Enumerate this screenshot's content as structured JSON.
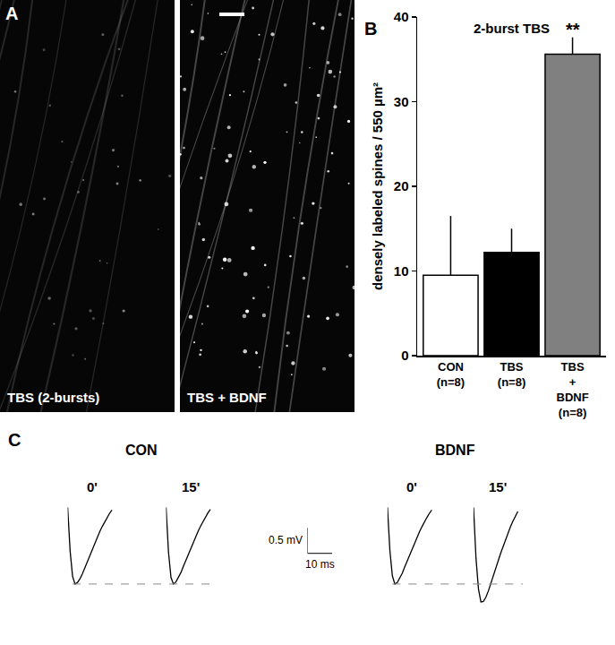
{
  "panel_labels": [
    "A",
    "B",
    "C"
  ],
  "images": {
    "captions": [
      "TBS (2-bursts)",
      "TBS + BDNF"
    ]
  },
  "chart_data": [
    {
      "type": "bar",
      "title": "2-burst TBS",
      "y_label": "densely labeled spines / 550 µm²",
      "categories": [
        "CON\n(n=8)",
        "TBS\n(n=8)",
        "TBS\n+\nBDNF\n(n=8)"
      ],
      "values": [
        9.5,
        12.2,
        35.6
      ],
      "errors": [
        7.0,
        2.8,
        2.0
      ],
      "colors": [
        "#ffffff",
        "#000000",
        "#808080"
      ],
      "ylim": [
        0,
        40
      ],
      "yticks": [
        0,
        10,
        20,
        30,
        40
      ],
      "grid": false,
      "annotations": [
        {
          "category": "TBS\n+\nBDNF\n(n=8)",
          "text": "**"
        }
      ]
    },
    {
      "type": "line",
      "x": [
        0,
        1,
        2,
        3,
        4,
        5,
        6,
        7,
        8,
        9,
        10,
        11,
        12,
        13,
        14,
        15,
        16,
        17,
        18
      ],
      "xlim": [
        0,
        20
      ],
      "ylim": [
        -2.1,
        0.15
      ],
      "tick_labels": false,
      "color": "#000000",
      "groups": [
        {
          "title": "CON",
          "reference_level": -1.5,
          "series": [
            {
              "name": "0'",
              "values": [
                0,
                -0.85,
                -1.35,
                -1.5,
                -1.47,
                -1.4,
                -1.3,
                -1.18,
                -1.06,
                -0.94,
                -0.82,
                -0.7,
                -0.59,
                -0.48,
                -0.38,
                -0.29,
                -0.2,
                -0.12,
                -0.05
              ]
            },
            {
              "name": "15'",
              "values": [
                0,
                -0.88,
                -1.37,
                -1.5,
                -1.46,
                -1.38,
                -1.28,
                -1.16,
                -1.04,
                -0.92,
                -0.8,
                -0.69,
                -0.58,
                -0.47,
                -0.37,
                -0.28,
                -0.19,
                -0.11,
                -0.04
              ]
            }
          ]
        },
        {
          "title": "BDNF",
          "reference_level": -1.5,
          "series": [
            {
              "name": "0'",
              "values": [
                0,
                -0.85,
                -1.34,
                -1.5,
                -1.47,
                -1.39,
                -1.29,
                -1.17,
                -1.05,
                -0.93,
                -0.81,
                -0.7,
                -0.59,
                -0.48,
                -0.38,
                -0.28,
                -0.2,
                -0.12,
                -0.05
              ]
            },
            {
              "name": "15'",
              "values": [
                0,
                -1.0,
                -1.6,
                -1.85,
                -1.84,
                -1.76,
                -1.64,
                -1.5,
                -1.35,
                -1.2,
                -1.05,
                -0.9,
                -0.76,
                -0.63,
                -0.5,
                -0.38,
                -0.27,
                -0.17,
                -0.08
              ]
            }
          ]
        }
      ],
      "scale_bar": {
        "x": 10,
        "x_label": "10 ms",
        "y": 0.5,
        "y_label": "0.5 mV"
      }
    }
  ]
}
